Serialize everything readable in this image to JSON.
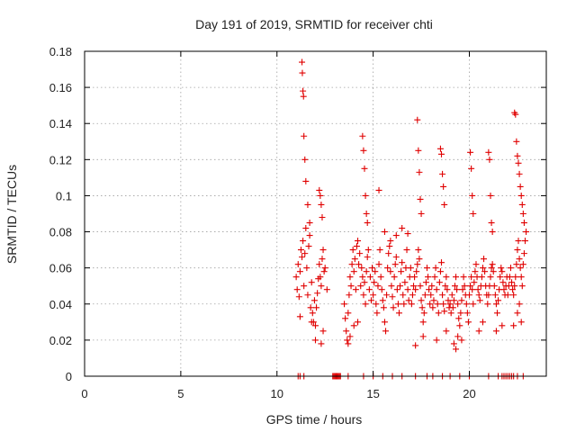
{
  "chart_data": {
    "type": "scatter",
    "title": "Day 191 of 2019, SRMTID for receiver chti",
    "xlabel": "GPS time / hours",
    "ylabel": "SRMTID / TECUs",
    "xlim": [
      0,
      24
    ],
    "ylim": [
      0,
      0.18
    ],
    "xticks": [
      0,
      5,
      10,
      15,
      20
    ],
    "xtick_labels": [
      "0",
      "5",
      "10",
      "15",
      "20"
    ],
    "yticks": [
      0,
      0.02,
      0.04,
      0.06,
      0.08,
      0.1,
      0.12,
      0.14,
      0.16,
      0.18
    ],
    "ytick_labels": [
      "0",
      "0.02",
      "0.04",
      "0.06",
      "0.08",
      "0.1",
      "0.12",
      "0.14",
      "0.16",
      "0.18"
    ],
    "marker": "+",
    "color": "#e00000",
    "grid": true,
    "series": [
      {
        "name": "SRMTID",
        "x": [
          11.0,
          11.05,
          11.1,
          11.15,
          11.2,
          11.25,
          11.3,
          11.35,
          11.4,
          11.45,
          11.5,
          11.55,
          11.6,
          11.65,
          11.7,
          11.75,
          11.8,
          11.85,
          11.9,
          11.95,
          12.0,
          12.05,
          12.1,
          12.15,
          12.2,
          12.25,
          12.3,
          12.35,
          12.4,
          12.45,
          12.5,
          12.6,
          11.3,
          11.32,
          11.35,
          11.38,
          11.4,
          11.45,
          11.5,
          11.6,
          11.7,
          12.2,
          12.25,
          12.3,
          12.35,
          11.2,
          11.8,
          12.0,
          12.3,
          12.4,
          13.5,
          13.55,
          13.6,
          13.65,
          13.7,
          13.75,
          13.8,
          13.85,
          13.9,
          13.95,
          14.0,
          14.05,
          14.1,
          14.15,
          14.2,
          14.25,
          14.3,
          14.35,
          14.4,
          14.45,
          14.5,
          14.55,
          14.6,
          14.65,
          14.7,
          14.75,
          14.8,
          14.85,
          14.9,
          14.95,
          14.45,
          14.5,
          14.55,
          14.6,
          14.65,
          14.7,
          13.7,
          13.8,
          14.0,
          14.2,
          15.0,
          15.05,
          15.1,
          15.15,
          15.2,
          15.25,
          15.3,
          15.35,
          15.4,
          15.45,
          15.5,
          15.55,
          15.6,
          15.65,
          15.7,
          15.75,
          15.8,
          15.85,
          15.9,
          15.95,
          16.0,
          16.05,
          16.1,
          16.15,
          16.2,
          16.25,
          16.3,
          16.35,
          16.4,
          16.45,
          16.5,
          16.55,
          16.6,
          16.65,
          16.7,
          16.75,
          16.8,
          16.85,
          16.9,
          16.95,
          15.3,
          15.6,
          15.9,
          16.2,
          16.5,
          16.8,
          17.0,
          17.05,
          17.1,
          17.15,
          17.2,
          17.25,
          17.3,
          17.35,
          17.4,
          17.45,
          17.5,
          17.55,
          17.6,
          17.65,
          17.7,
          17.75,
          17.8,
          17.85,
          17.9,
          17.95,
          17.3,
          17.35,
          17.4,
          17.45,
          17.5,
          17.2,
          17.6,
          18.0,
          18.05,
          18.1,
          18.15,
          18.2,
          18.25,
          18.3,
          18.35,
          18.4,
          18.45,
          18.5,
          18.55,
          18.6,
          18.65,
          18.7,
          18.75,
          18.8,
          18.85,
          18.9,
          18.95,
          18.5,
          18.55,
          18.6,
          18.65,
          18.7,
          18.3,
          18.8,
          19.0,
          19.05,
          19.1,
          19.15,
          19.2,
          19.25,
          19.3,
          19.35,
          19.4,
          19.45,
          19.5,
          19.55,
          19.6,
          19.65,
          19.7,
          19.75,
          19.8,
          19.85,
          19.9,
          19.95,
          19.3,
          19.6,
          19.2,
          19.4,
          20.0,
          20.05,
          20.1,
          20.15,
          20.2,
          20.25,
          20.3,
          20.35,
          20.4,
          20.45,
          20.5,
          20.55,
          20.6,
          20.65,
          20.7,
          20.75,
          20.8,
          20.85,
          20.9,
          20.95,
          20.05,
          20.1,
          20.15,
          20.2,
          20.5,
          20.7,
          21.0,
          21.05,
          21.1,
          21.15,
          21.2,
          21.25,
          21.3,
          21.35,
          21.4,
          21.45,
          21.5,
          21.55,
          21.6,
          21.65,
          21.7,
          21.75,
          21.8,
          21.85,
          21.9,
          21.95,
          21.0,
          21.05,
          21.1,
          21.15,
          21.2,
          21.4,
          21.7,
          22.0,
          22.05,
          22.1,
          22.15,
          22.2,
          22.25,
          22.3,
          22.35,
          22.4,
          22.45,
          22.5,
          22.55,
          22.6,
          22.65,
          22.7,
          22.75,
          22.8,
          22.85,
          22.9,
          22.95,
          22.35,
          22.4,
          22.45,
          22.5,
          22.55,
          22.6,
          22.65,
          22.7,
          22.75,
          22.8,
          22.85,
          22.3,
          22.5,
          22.6,
          22.7,
          11.1,
          11.2,
          11.4,
          12.9,
          12.95,
          13.0,
          13.05,
          13.1,
          13.15,
          13.2,
          13.25,
          13.3,
          13.7,
          14.5,
          15.0,
          15.5,
          16.0,
          16.5,
          17.2,
          17.8,
          18.1,
          18.6,
          19.0,
          19.5,
          20.0,
          21.0,
          21.5,
          21.7,
          21.8,
          21.9,
          22.0,
          22.1,
          22.2,
          22.3,
          22.5,
          22.8
        ],
        "y": [
          0.055,
          0.048,
          0.062,
          0.044,
          0.058,
          0.07,
          0.066,
          0.075,
          0.05,
          0.068,
          0.082,
          0.06,
          0.045,
          0.072,
          0.078,
          0.038,
          0.052,
          0.035,
          0.03,
          0.042,
          0.028,
          0.038,
          0.046,
          0.054,
          0.062,
          0.055,
          0.05,
          0.065,
          0.07,
          0.058,
          0.06,
          0.048,
          0.174,
          0.168,
          0.158,
          0.155,
          0.133,
          0.12,
          0.108,
          0.095,
          0.085,
          0.103,
          0.1,
          0.095,
          0.088,
          0.033,
          0.03,
          0.02,
          0.018,
          0.025,
          0.04,
          0.032,
          0.025,
          0.02,
          0.035,
          0.045,
          0.055,
          0.05,
          0.062,
          0.07,
          0.058,
          0.065,
          0.048,
          0.072,
          0.075,
          0.062,
          0.068,
          0.05,
          0.06,
          0.055,
          0.045,
          0.052,
          0.04,
          0.058,
          0.066,
          0.07,
          0.048,
          0.055,
          0.042,
          0.06,
          0.133,
          0.125,
          0.115,
          0.1,
          0.09,
          0.085,
          0.018,
          0.022,
          0.028,
          0.03,
          0.045,
          0.052,
          0.058,
          0.04,
          0.035,
          0.05,
          0.062,
          0.07,
          0.055,
          0.048,
          0.042,
          0.038,
          0.03,
          0.025,
          0.045,
          0.06,
          0.068,
          0.072,
          0.058,
          0.05,
          0.044,
          0.038,
          0.055,
          0.062,
          0.066,
          0.048,
          0.04,
          0.035,
          0.05,
          0.058,
          0.063,
          0.045,
          0.04,
          0.052,
          0.06,
          0.07,
          0.048,
          0.042,
          0.055,
          0.06,
          0.103,
          0.08,
          0.075,
          0.078,
          0.082,
          0.079,
          0.04,
          0.045,
          0.05,
          0.055,
          0.048,
          0.058,
          0.062,
          0.07,
          0.065,
          0.05,
          0.042,
          0.038,
          0.03,
          0.035,
          0.045,
          0.052,
          0.06,
          0.055,
          0.048,
          0.04,
          0.142,
          0.125,
          0.113,
          0.098,
          0.09,
          0.017,
          0.022,
          0.045,
          0.05,
          0.038,
          0.042,
          0.055,
          0.06,
          0.048,
          0.04,
          0.035,
          0.052,
          0.058,
          0.063,
          0.045,
          0.04,
          0.036,
          0.05,
          0.055,
          0.048,
          0.042,
          0.038,
          0.126,
          0.123,
          0.112,
          0.105,
          0.095,
          0.02,
          0.025,
          0.04,
          0.035,
          0.045,
          0.038,
          0.042,
          0.05,
          0.055,
          0.048,
          0.04,
          0.032,
          0.028,
          0.035,
          0.042,
          0.048,
          0.055,
          0.05,
          0.045,
          0.04,
          0.035,
          0.03,
          0.015,
          0.02,
          0.018,
          0.022,
          0.045,
          0.05,
          0.055,
          0.048,
          0.04,
          0.052,
          0.058,
          0.062,
          0.055,
          0.048,
          0.045,
          0.042,
          0.05,
          0.055,
          0.06,
          0.065,
          0.058,
          0.05,
          0.045,
          0.04,
          0.124,
          0.115,
          0.1,
          0.09,
          0.025,
          0.03,
          0.045,
          0.05,
          0.055,
          0.06,
          0.062,
          0.058,
          0.05,
          0.045,
          0.04,
          0.035,
          0.042,
          0.048,
          0.055,
          0.06,
          0.058,
          0.052,
          0.048,
          0.045,
          0.05,
          0.055,
          0.124,
          0.12,
          0.1,
          0.085,
          0.08,
          0.025,
          0.028,
          0.045,
          0.05,
          0.055,
          0.06,
          0.052,
          0.048,
          0.045,
          0.05,
          0.055,
          0.062,
          0.07,
          0.075,
          0.065,
          0.06,
          0.055,
          0.05,
          0.062,
          0.068,
          0.075,
          0.08,
          0.146,
          0.145,
          0.13,
          0.122,
          0.118,
          0.112,
          0.105,
          0.1,
          0.095,
          0.09,
          0.085,
          0.028,
          0.035,
          0.04,
          0.03,
          0,
          0,
          0,
          0,
          0,
          0,
          0,
          0,
          0,
          0,
          0,
          0,
          0,
          0,
          0,
          0,
          0,
          0,
          0,
          0,
          0,
          0,
          0,
          0,
          0,
          0,
          0,
          0,
          0,
          0,
          0,
          0,
          0,
          0,
          0,
          0
        ]
      }
    ]
  }
}
